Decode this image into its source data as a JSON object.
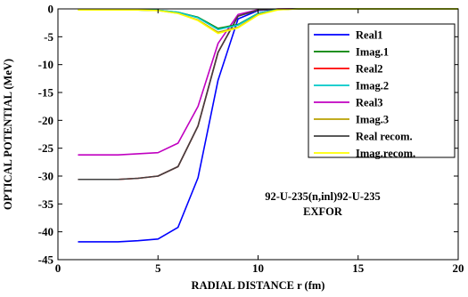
{
  "chart_data": {
    "type": "line",
    "title": "",
    "xlabel": "RADIAL DISTANCE r (fm)",
    "ylabel": "OPTICAL POTENTIAL (MeV)",
    "xlim": [
      0,
      20
    ],
    "ylim": [
      -45,
      0
    ],
    "xticks": [
      "0",
      "5",
      "10",
      "15",
      "20"
    ],
    "yticks": [
      "0",
      "-5",
      "-10",
      "-15",
      "-20",
      "-25",
      "-30",
      "-35",
      "-40",
      "-45"
    ],
    "grid": false,
    "legend_position": "top-right",
    "annotations": [
      "92-U-235(n,inl)92-U-235",
      "EXFOR"
    ],
    "x": [
      1,
      2,
      3,
      4,
      5,
      6,
      7,
      8,
      9,
      10,
      11,
      12,
      13,
      14,
      15,
      16,
      17,
      18,
      19,
      20
    ],
    "series": [
      {
        "name": "Real1",
        "color": "#0000ff",
        "values": [
          -41.8,
          -41.8,
          -41.8,
          -41.6,
          -41.3,
          -39.2,
          -30.3,
          -12.8,
          -1.8,
          -0.3,
          -0.05,
          0,
          0,
          0,
          0,
          0,
          0,
          0,
          0,
          0
        ]
      },
      {
        "name": "Imag.1",
        "color": "#008000",
        "values": [
          -0.2,
          -0.2,
          -0.2,
          -0.2,
          -0.25,
          -0.6,
          -1.5,
          -3.5,
          -2.8,
          -0.8,
          -0.1,
          0,
          0,
          0,
          0,
          0,
          0,
          0,
          0,
          0
        ]
      },
      {
        "name": "Real2",
        "color": "#ff0000",
        "values": [
          -30.6,
          -30.6,
          -30.6,
          -30.4,
          -30.0,
          -28.3,
          -21.0,
          -7.8,
          -1.3,
          -0.2,
          -0.03,
          0,
          0,
          0,
          0,
          0,
          0,
          0,
          0,
          0
        ]
      },
      {
        "name": "Imag.2",
        "color": "#00c8c8",
        "values": [
          -0.2,
          -0.2,
          -0.2,
          -0.2,
          -0.25,
          -0.6,
          -1.6,
          -3.7,
          -2.9,
          -0.8,
          -0.1,
          0,
          0,
          0,
          0,
          0,
          0,
          0,
          0,
          0
        ]
      },
      {
        "name": "Real3",
        "color": "#c000c0",
        "values": [
          -26.2,
          -26.2,
          -26.2,
          -26.0,
          -25.8,
          -24.1,
          -17.5,
          -6.2,
          -1.0,
          -0.15,
          -0.02,
          0,
          0,
          0,
          0,
          0,
          0,
          0,
          0,
          0
        ]
      },
      {
        "name": "Imag.3",
        "color": "#b8a000",
        "values": [
          -0.2,
          -0.2,
          -0.2,
          -0.2,
          -0.3,
          -0.8,
          -2.0,
          -4.2,
          -3.3,
          -1.0,
          -0.15,
          0,
          0,
          0,
          0,
          0,
          0,
          0,
          0,
          0
        ]
      },
      {
        "name": "Real recom.",
        "color": "#404040",
        "values": [
          -30.6,
          -30.6,
          -30.6,
          -30.4,
          -30.0,
          -28.3,
          -21.0,
          -7.8,
          -1.3,
          -0.2,
          -0.03,
          0,
          0,
          0,
          0,
          0,
          0,
          0,
          0,
          0
        ]
      },
      {
        "name": "Imag.recom.",
        "color": "#ffff00",
        "values": [
          -0.2,
          -0.2,
          -0.2,
          -0.2,
          -0.3,
          -0.8,
          -2.1,
          -4.4,
          -3.4,
          -1.1,
          -0.15,
          0,
          0,
          0,
          0,
          0,
          0,
          0,
          0,
          0
        ]
      }
    ]
  }
}
